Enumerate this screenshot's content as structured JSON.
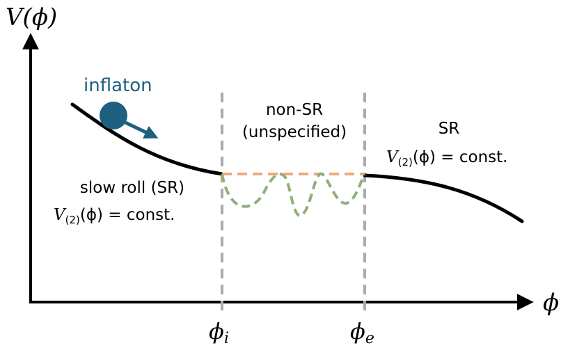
{
  "axes": {
    "y_label": "V(ϕ)",
    "x_label": "ϕ",
    "x_ticks": [
      {
        "symbol": "ϕ",
        "sub": "i"
      },
      {
        "symbol": "ϕ",
        "sub": "e"
      }
    ]
  },
  "labels": {
    "inflaton": "inflaton",
    "non_sr_line1": "non-SR",
    "non_sr_line2": "(unspecified)",
    "sr_right_title": "SR",
    "slow_roll": "slow roll (SR)",
    "formula": {
      "v": "V",
      "sub": "(2)",
      "rest": "(ϕ) = const."
    }
  },
  "colors": {
    "curve": "#000000",
    "ball": "#1f5f80",
    "dashed_vertical": "#aaaaaa",
    "flat_dashed": "#f0a878",
    "oscillation": "#8fb07a"
  },
  "icons": {
    "ball": "inflaton-ball-icon",
    "arrow": "roll-direction-arrow-icon"
  }
}
